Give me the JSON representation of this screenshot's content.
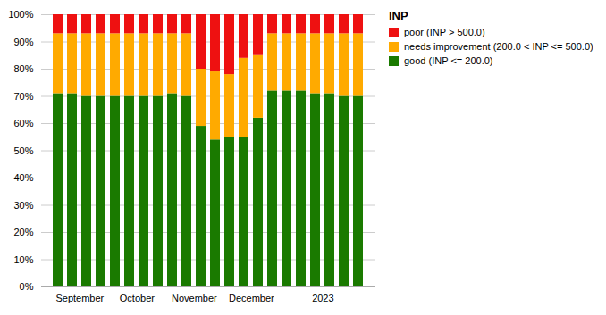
{
  "chart_data": {
    "type": "bar",
    "stacked": true,
    "title": "INP",
    "categories": [
      null,
      "September",
      null,
      null,
      null,
      "October",
      null,
      null,
      null,
      "November",
      null,
      null,
      null,
      "December",
      null,
      null,
      null,
      null,
      "2023",
      null,
      null,
      null
    ],
    "series": [
      {
        "name": "good (INP <= 200.0)",
        "color": "#1a7a00",
        "values": [
          71,
          71,
          70,
          70,
          70,
          70,
          70,
          70,
          71,
          70,
          59,
          54,
          55,
          55,
          62,
          72,
          72,
          72,
          71,
          71,
          70,
          70
        ]
      },
      {
        "name": "needs improvement (200.0 < INP <= 500.0)",
        "color": "#ffaa00",
        "values": [
          22,
          22,
          23,
          23,
          23,
          23,
          23,
          23,
          22,
          23,
          21,
          25,
          23,
          29,
          23,
          21,
          21,
          21,
          22,
          22,
          23,
          23
        ]
      },
      {
        "name": "poor (INP > 500.0)",
        "color": "#ee1111",
        "values": [
          7,
          7,
          7,
          7,
          7,
          7,
          7,
          7,
          7,
          7,
          20,
          21,
          22,
          16,
          15,
          7,
          7,
          7,
          7,
          7,
          7,
          7
        ]
      }
    ],
    "ylim": [
      0,
      100
    ],
    "yticks": [
      {
        "value": 0,
        "label": "0%"
      },
      {
        "value": 10,
        "label": "10%"
      },
      {
        "value": 20,
        "label": "20%"
      },
      {
        "value": 30,
        "label": "30%"
      },
      {
        "value": 40,
        "label": "40%"
      },
      {
        "value": 50,
        "label": "50%"
      },
      {
        "value": 60,
        "label": "60%"
      },
      {
        "value": 70,
        "label": "70%"
      },
      {
        "value": 80,
        "label": "80%"
      },
      {
        "value": 90,
        "label": "90%"
      },
      {
        "value": 100,
        "label": "100%"
      }
    ],
    "grid": true,
    "legend": "right"
  }
}
